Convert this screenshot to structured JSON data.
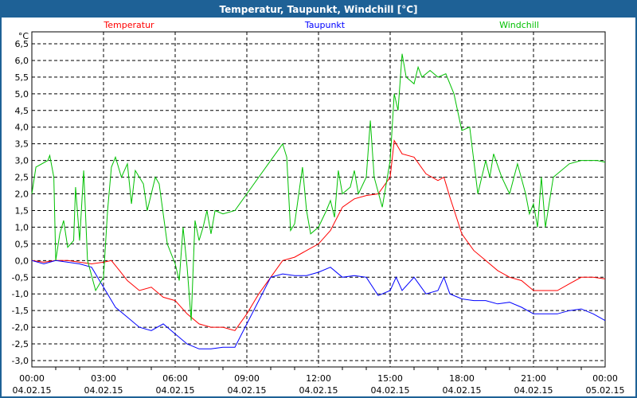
{
  "chart_data": {
    "type": "line",
    "title": "Temperatur, Taupunkt, Windchill [°C]",
    "ylabel": "°C",
    "ylim": [
      -3.0,
      6.5
    ],
    "yticks": [
      "6,5",
      "6,0",
      "5,5",
      "5,0",
      "4,5",
      "4,0",
      "3,5",
      "3,0",
      "2,5",
      "2,0",
      "1,5",
      "1,0",
      "0,5",
      "0,0",
      "-0,5",
      "-1,0",
      "-1,5",
      "-2,0",
      "-2,5",
      "-3,0"
    ],
    "xlim_hours": [
      0,
      24
    ],
    "xticks": [
      {
        "time": "00:00",
        "date": "04.02.15"
      },
      {
        "time": "03:00",
        "date": "04.02.15"
      },
      {
        "time": "06:00",
        "date": "04.02.15"
      },
      {
        "time": "09:00",
        "date": "04.02.15"
      },
      {
        "time": "12:00",
        "date": "04.02.15"
      },
      {
        "time": "15:00",
        "date": "04.02.15"
      },
      {
        "time": "18:00",
        "date": "04.02.15"
      },
      {
        "time": "21:00",
        "date": "04.02.15"
      },
      {
        "time": "00:00",
        "date": "05.02.15"
      }
    ],
    "grid": true,
    "legend": "top",
    "series": [
      {
        "name": "Temperatur",
        "color": "#ff0000",
        "points": [
          [
            0,
            0
          ],
          [
            0.5,
            -0.05
          ],
          [
            1,
            0
          ],
          [
            1.5,
            0
          ],
          [
            2,
            -0.05
          ],
          [
            2.5,
            -0.1
          ],
          [
            3,
            -0.05
          ],
          [
            3.33,
            0
          ],
          [
            3.67,
            -0.3
          ],
          [
            4,
            -0.6
          ],
          [
            4.5,
            -0.9
          ],
          [
            5,
            -0.8
          ],
          [
            5.5,
            -1.1
          ],
          [
            6,
            -1.2
          ],
          [
            6.5,
            -1.6
          ],
          [
            7,
            -1.9
          ],
          [
            7.5,
            -2.0
          ],
          [
            8,
            -2.0
          ],
          [
            8.5,
            -2.1
          ],
          [
            9,
            -1.6
          ],
          [
            9.5,
            -1.0
          ],
          [
            10,
            -0.5
          ],
          [
            10.5,
            0
          ],
          [
            11,
            0.1
          ],
          [
            11.5,
            0.3
          ],
          [
            12,
            0.5
          ],
          [
            12.5,
            0.9
          ],
          [
            13,
            1.6
          ],
          [
            13.5,
            1.85
          ],
          [
            14,
            1.95
          ],
          [
            14.5,
            2.0
          ],
          [
            15,
            2.5
          ],
          [
            15.17,
            3.6
          ],
          [
            15.5,
            3.2
          ],
          [
            16,
            3.1
          ],
          [
            16.5,
            2.6
          ],
          [
            17,
            2.4
          ],
          [
            17.25,
            2.5
          ],
          [
            17.5,
            1.9
          ],
          [
            18,
            0.8
          ],
          [
            18.5,
            0.3
          ],
          [
            19,
            0
          ],
          [
            19.5,
            -0.3
          ],
          [
            20,
            -0.5
          ],
          [
            20.5,
            -0.6
          ],
          [
            21,
            -0.9
          ],
          [
            21.5,
            -0.9
          ],
          [
            22,
            -0.9
          ],
          [
            22.5,
            -0.7
          ],
          [
            23,
            -0.5
          ],
          [
            23.5,
            -0.5
          ],
          [
            24,
            -0.55
          ]
        ]
      },
      {
        "name": "Taupunkt",
        "color": "#0000ff",
        "points": [
          [
            0,
            0
          ],
          [
            0.5,
            -0.1
          ],
          [
            1,
            0
          ],
          [
            1.5,
            -0.05
          ],
          [
            2,
            -0.1
          ],
          [
            2.5,
            -0.2
          ],
          [
            3,
            -0.8
          ],
          [
            3.5,
            -1.4
          ],
          [
            4,
            -1.7
          ],
          [
            4.5,
            -2.0
          ],
          [
            5,
            -2.1
          ],
          [
            5.5,
            -1.9
          ],
          [
            6,
            -2.2
          ],
          [
            6.5,
            -2.5
          ],
          [
            7,
            -2.65
          ],
          [
            7.5,
            -2.65
          ],
          [
            8,
            -2.6
          ],
          [
            8.5,
            -2.6
          ],
          [
            9,
            -1.9
          ],
          [
            9.5,
            -1.2
          ],
          [
            10,
            -0.5
          ],
          [
            10.5,
            -0.4
          ],
          [
            11,
            -0.45
          ],
          [
            11.5,
            -0.45
          ],
          [
            12,
            -0.35
          ],
          [
            12.5,
            -0.2
          ],
          [
            13,
            -0.5
          ],
          [
            13.5,
            -0.45
          ],
          [
            14,
            -0.5
          ],
          [
            14.5,
            -1.05
          ],
          [
            15,
            -0.9
          ],
          [
            15.25,
            -0.5
          ],
          [
            15.5,
            -0.9
          ],
          [
            16,
            -0.5
          ],
          [
            16.5,
            -1.0
          ],
          [
            17,
            -0.9
          ],
          [
            17.25,
            -0.5
          ],
          [
            17.5,
            -1.0
          ],
          [
            18,
            -1.15
          ],
          [
            18.5,
            -1.2
          ],
          [
            19,
            -1.2
          ],
          [
            19.5,
            -1.3
          ],
          [
            20,
            -1.25
          ],
          [
            20.5,
            -1.4
          ],
          [
            21,
            -1.6
          ],
          [
            21.5,
            -1.6
          ],
          [
            22,
            -1.6
          ],
          [
            22.5,
            -1.5
          ],
          [
            23,
            -1.45
          ],
          [
            23.5,
            -1.6
          ],
          [
            24,
            -1.8
          ]
        ]
      },
      {
        "name": "Windchill",
        "color": "#00c000",
        "points": [
          [
            0,
            2.0
          ],
          [
            0.17,
            2.8
          ],
          [
            0.67,
            3.0
          ],
          [
            0.75,
            3.15
          ],
          [
            0.92,
            2.5
          ],
          [
            1,
            0
          ],
          [
            1.17,
            0.8
          ],
          [
            1.33,
            1.2
          ],
          [
            1.5,
            0.4
          ],
          [
            1.75,
            0.6
          ],
          [
            1.83,
            2.2
          ],
          [
            2,
            0.6
          ],
          [
            2.17,
            2.7
          ],
          [
            2.33,
            0
          ],
          [
            2.67,
            -0.9
          ],
          [
            3,
            -0.5
          ],
          [
            3.17,
            1.5
          ],
          [
            3.33,
            2.8
          ],
          [
            3.5,
            3.1
          ],
          [
            3.75,
            2.5
          ],
          [
            4,
            2.9
          ],
          [
            4.17,
            1.7
          ],
          [
            4.33,
            2.7
          ],
          [
            4.67,
            2.3
          ],
          [
            4.83,
            1.5
          ],
          [
            5.17,
            2.5
          ],
          [
            5.33,
            2.3
          ],
          [
            5.67,
            0.5
          ],
          [
            6,
            -0.1
          ],
          [
            6.17,
            -0.6
          ],
          [
            6.33,
            1.0
          ],
          [
            6.5,
            -0.2
          ],
          [
            6.67,
            -1.8
          ],
          [
            6.83,
            1.2
          ],
          [
            7,
            0.6
          ],
          [
            7.17,
            1.0
          ],
          [
            7.33,
            1.5
          ],
          [
            7.5,
            0.8
          ],
          [
            7.67,
            1.5
          ],
          [
            8,
            1.4
          ],
          [
            8.5,
            1.5
          ],
          [
            9,
            2.0
          ],
          [
            10,
            3.0
          ],
          [
            10.5,
            3.5
          ],
          [
            10.67,
            3.1
          ],
          [
            10.83,
            0.9
          ],
          [
            11,
            1.1
          ],
          [
            11.33,
            2.8
          ],
          [
            11.5,
            1.5
          ],
          [
            11.67,
            0.8
          ],
          [
            12,
            1.0
          ],
          [
            12.33,
            1.5
          ],
          [
            12.5,
            1.8
          ],
          [
            12.67,
            1.3
          ],
          [
            12.83,
            2.7
          ],
          [
            13,
            2.0
          ],
          [
            13.33,
            2.2
          ],
          [
            13.5,
            2.7
          ],
          [
            13.67,
            2.0
          ],
          [
            14,
            2.5
          ],
          [
            14.17,
            4.2
          ],
          [
            14.33,
            2.5
          ],
          [
            14.67,
            1.6
          ],
          [
            15,
            3.0
          ],
          [
            15.17,
            5.0
          ],
          [
            15.33,
            4.5
          ],
          [
            15.5,
            6.2
          ],
          [
            15.67,
            5.5
          ],
          [
            16,
            5.3
          ],
          [
            16.17,
            5.8
          ],
          [
            16.33,
            5.5
          ],
          [
            16.67,
            5.7
          ],
          [
            17,
            5.5
          ],
          [
            17.33,
            5.6
          ],
          [
            17.67,
            5.0
          ],
          [
            18,
            3.9
          ],
          [
            18.33,
            4.0
          ],
          [
            18.67,
            2.0
          ],
          [
            19,
            3.0
          ],
          [
            19.17,
            2.5
          ],
          [
            19.33,
            3.2
          ],
          [
            19.67,
            2.5
          ],
          [
            20,
            2.0
          ],
          [
            20.33,
            2.9
          ],
          [
            20.67,
            2.0
          ],
          [
            20.83,
            1.4
          ],
          [
            21,
            1.7
          ],
          [
            21.17,
            1.0
          ],
          [
            21.33,
            2.5
          ],
          [
            21.5,
            1.0
          ],
          [
            21.83,
            2.5
          ],
          [
            22.5,
            2.9
          ],
          [
            23,
            3.0
          ],
          [
            23.67,
            3.0
          ],
          [
            24,
            2.95
          ]
        ]
      }
    ]
  }
}
